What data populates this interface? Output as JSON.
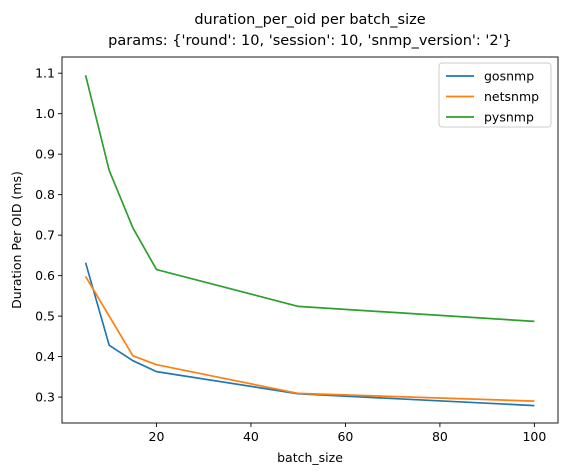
{
  "chart_data": {
    "type": "line",
    "title": "duration_per_oid per batch_size",
    "subtitle": "params: {'round': 10, 'session': 10, 'snmp_version': '2'}",
    "xlabel": "batch_size",
    "ylabel": "Duration Per OID (ms)",
    "xlim": [
      0,
      105
    ],
    "ylim": [
      0.236,
      1.14
    ],
    "xticks": [
      20,
      40,
      60,
      80,
      100
    ],
    "yticks": [
      0.3,
      0.4,
      0.5,
      0.6,
      0.7,
      0.8,
      0.9,
      1.0,
      1.1
    ],
    "grid": false,
    "legend_position": "top-right",
    "x": [
      5,
      10,
      15,
      20,
      50,
      100
    ],
    "series": [
      {
        "name": "gosnmp",
        "color": "#1f77b4",
        "values": [
          0.632,
          0.428,
          0.39,
          0.363,
          0.308,
          0.279
        ]
      },
      {
        "name": "netsnmp",
        "color": "#ff7f0e",
        "values": [
          0.598,
          0.5,
          0.402,
          0.38,
          0.309,
          0.29
        ]
      },
      {
        "name": "pysnmp",
        "color": "#2ca02c",
        "values": [
          1.095,
          0.86,
          0.718,
          0.615,
          0.524,
          0.487
        ]
      }
    ]
  }
}
